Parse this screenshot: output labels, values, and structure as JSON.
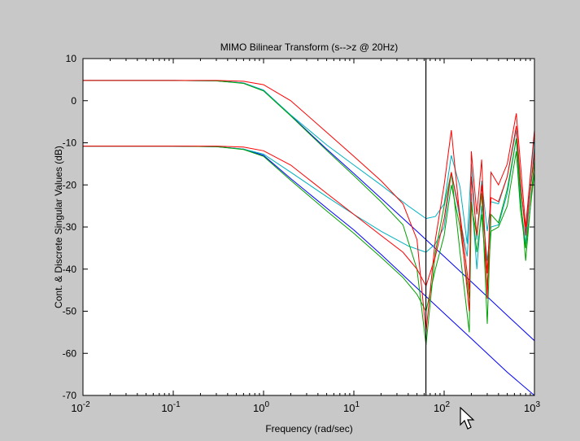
{
  "chart_data": {
    "type": "line",
    "title": "MIMO Bilinear Transform (s-->z @ 20Hz)",
    "xlabel": "Frequency (rad/sec)",
    "ylabel": "Cont. & Discrete Singular Values (dB)",
    "xscale": "log",
    "xlim": [
      0.01,
      1000
    ],
    "ylim": [
      -70,
      10
    ],
    "xticks": [
      {
        "value": 0.01,
        "base": "10",
        "exp": "-2"
      },
      {
        "value": 0.1,
        "base": "10",
        "exp": "-1"
      },
      {
        "value": 1,
        "base": "10",
        "exp": "0"
      },
      {
        "value": 10,
        "base": "10",
        "exp": "1"
      },
      {
        "value": 100,
        "base": "10",
        "exp": "2"
      },
      {
        "value": 1000,
        "base": "10",
        "exp": "3"
      }
    ],
    "yticks": [
      10,
      0,
      -10,
      -20,
      -30,
      -40,
      -50,
      -60,
      -70
    ],
    "grid": false,
    "vline_x": 62.8,
    "colors": {
      "blue": "#0000ff",
      "green": "#00a000",
      "red": "#ff0000",
      "cyan": "#00b0c0",
      "magenta": "#ff00ff",
      "black": "#000000",
      "background": "#c8c8c8",
      "axes": "#ffffff"
    },
    "series": [
      {
        "color": "blue",
        "x": [
          0.01,
          0.1,
          0.3,
          0.6,
          1,
          2,
          5,
          10,
          20,
          50,
          100,
          200,
          500,
          1000
        ],
        "y": [
          4.8,
          4.8,
          4.7,
          4.2,
          2.5,
          -3.5,
          -11.5,
          -17.3,
          -23.2,
          -31,
          -37,
          -43,
          -51,
          -57
        ]
      },
      {
        "color": "blue",
        "x": [
          0.01,
          0.1,
          0.3,
          0.6,
          1,
          2,
          5,
          10,
          20,
          50,
          100,
          200,
          500,
          1000
        ],
        "y": [
          -10.8,
          -10.8,
          -10.9,
          -11.5,
          -13,
          -18.5,
          -25.5,
          -30.7,
          -36.5,
          -44.5,
          -50.5,
          -56.5,
          -64.5,
          -70
        ]
      },
      {
        "color": "cyan",
        "x": [
          0.01,
          0.1,
          0.3,
          0.6,
          1,
          2,
          5,
          10,
          20,
          40,
          63,
          80,
          100,
          120,
          150,
          180,
          200,
          230,
          260,
          300,
          330,
          400,
          500,
          630,
          700,
          800,
          1000
        ],
        "y": [
          4.8,
          4.8,
          4.7,
          4.2,
          2.5,
          -3.4,
          -10.5,
          -15.3,
          -20,
          -25,
          -28,
          -27.5,
          -24.5,
          -13,
          -20.5,
          -34,
          -15,
          -33,
          -19,
          -31,
          -24,
          -24.5,
          -18,
          -7,
          -20,
          -31,
          -8
        ]
      },
      {
        "color": "cyan",
        "x": [
          0.01,
          0.1,
          0.3,
          0.6,
          1,
          2,
          5,
          10,
          20,
          40,
          63,
          80,
          100,
          120,
          150,
          180,
          200,
          230,
          260,
          300,
          330,
          400,
          500,
          630,
          700,
          800,
          1000
        ],
        "y": [
          -10.8,
          -10.8,
          -10.9,
          -11.5,
          -12.7,
          -17,
          -22.8,
          -27,
          -31,
          -34.5,
          -36,
          -34,
          -30,
          -17,
          -28,
          -37,
          -22,
          -40,
          -25,
          -38,
          -30,
          -29.5,
          -22,
          -9,
          -24,
          -34,
          -11
        ]
      },
      {
        "color": "green",
        "x": [
          0.01,
          0.1,
          0.3,
          0.6,
          1,
          2,
          5,
          10,
          20,
          35,
          50,
          63,
          80,
          100,
          120,
          150,
          190,
          200,
          230,
          260,
          300,
          330,
          400,
          500,
          630,
          700,
          800,
          1000
        ],
        "y": [
          4.8,
          4.8,
          4.7,
          4.1,
          2.3,
          -3.6,
          -11.8,
          -17.8,
          -24,
          -29.5,
          -40,
          -58,
          -36,
          -25,
          -17,
          -36,
          -55,
          -25,
          -32,
          -22,
          -53,
          -27,
          -29,
          -21,
          -9,
          -22,
          -38,
          -14
        ]
      },
      {
        "color": "green",
        "x": [
          0.01,
          0.1,
          0.3,
          0.6,
          1,
          2,
          5,
          10,
          20,
          35,
          50,
          63,
          80,
          100,
          120,
          150,
          190,
          200,
          230,
          260,
          300,
          330,
          400,
          500,
          630,
          700,
          800,
          1000
        ],
        "y": [
          -10.8,
          -10.8,
          -10.9,
          -11.6,
          -13.2,
          -18.9,
          -26.2,
          -31.5,
          -37.2,
          -42,
          -46,
          -50,
          -40,
          -32,
          -20,
          -30,
          -47,
          -24,
          -36,
          -27,
          -44,
          -31,
          -30,
          -25,
          -12,
          -26,
          -35,
          -17
        ]
      },
      {
        "color": "red",
        "x": [
          0.01,
          0.1,
          0.3,
          0.6,
          1,
          2,
          5,
          10,
          20,
          35,
          50,
          63,
          80,
          100,
          120,
          150,
          190,
          200,
          230,
          260,
          300,
          330,
          400,
          500,
          630,
          700,
          800,
          1000
        ],
        "y": [
          4.8,
          4.8,
          4.8,
          4.6,
          3.8,
          0,
          -7.5,
          -13.2,
          -19,
          -24.5,
          -33,
          -55,
          -33,
          -20,
          -7,
          -28,
          -50,
          -12,
          -27,
          -14,
          -47,
          -17,
          -20,
          -15,
          -3,
          -15,
          -30,
          -7
        ]
      },
      {
        "color": "red",
        "x": [
          0.01,
          0.1,
          0.3,
          0.6,
          1,
          2,
          5,
          10,
          20,
          35,
          50,
          63,
          80,
          100,
          120,
          150,
          190,
          200,
          230,
          260,
          300,
          330,
          400,
          500,
          630,
          700,
          800,
          1000
        ],
        "y": [
          -10.8,
          -10.8,
          -10.8,
          -11,
          -11.9,
          -15.3,
          -22,
          -27,
          -32,
          -36,
          -40,
          -44,
          -37,
          -28,
          -17,
          -27,
          -45,
          -18,
          -32,
          -20,
          -41,
          -23,
          -24,
          -18,
          -6,
          -19,
          -32,
          -12
        ]
      }
    ]
  }
}
